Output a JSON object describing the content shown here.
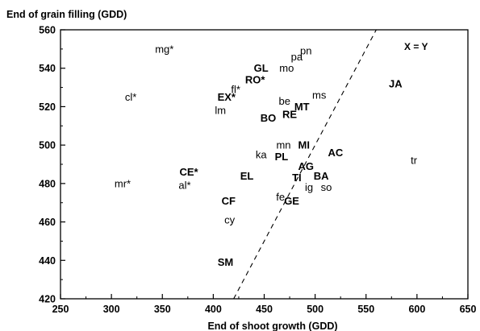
{
  "chart_data": {
    "type": "scatter",
    "ylabel": "End of grain filling (GDD)",
    "xlabel": "End of shoot growth (GDD)",
    "xlim": [
      250,
      650
    ],
    "ylim": [
      420,
      560
    ],
    "x_ticks": [
      250,
      300,
      350,
      400,
      450,
      500,
      550,
      600,
      650
    ],
    "y_ticks": [
      420,
      440,
      460,
      480,
      500,
      520,
      540,
      560
    ],
    "reference_line": {
      "label": "X = Y",
      "style": "dashed"
    },
    "points": [
      {
        "label": "mg*",
        "x": 352,
        "y": 550,
        "bold": false
      },
      {
        "label": "pa",
        "x": 482,
        "y": 546,
        "bold": false
      },
      {
        "label": "pn",
        "x": 491,
        "y": 549,
        "bold": false
      },
      {
        "label": "GL",
        "x": 447,
        "y": 540,
        "bold": true
      },
      {
        "label": "mo",
        "x": 472,
        "y": 540,
        "bold": false
      },
      {
        "label": "RO*",
        "x": 441,
        "y": 534,
        "bold": true
      },
      {
        "label": "fl*",
        "x": 422,
        "y": 529,
        "bold": false
      },
      {
        "label": "cl*",
        "x": 319,
        "y": 525,
        "bold": false
      },
      {
        "label": "EX*",
        "x": 413,
        "y": 525,
        "bold": true
      },
      {
        "label": "ms",
        "x": 504,
        "y": 526,
        "bold": false
      },
      {
        "label": "be",
        "x": 470,
        "y": 523,
        "bold": false
      },
      {
        "label": "MT",
        "x": 487,
        "y": 520,
        "bold": true
      },
      {
        "label": "lm",
        "x": 407,
        "y": 518,
        "bold": false
      },
      {
        "label": "RE",
        "x": 475,
        "y": 516,
        "bold": true
      },
      {
        "label": "BO",
        "x": 454,
        "y": 514,
        "bold": true
      },
      {
        "label": "JA",
        "x": 579,
        "y": 532,
        "bold": true
      },
      {
        "label": "mn",
        "x": 469,
        "y": 500,
        "bold": false
      },
      {
        "label": "MI",
        "x": 489,
        "y": 500,
        "bold": true
      },
      {
        "label": "ka",
        "x": 447,
        "y": 495,
        "bold": false
      },
      {
        "label": "PL",
        "x": 467,
        "y": 494,
        "bold": true
      },
      {
        "label": "AC",
        "x": 520,
        "y": 496,
        "bold": true
      },
      {
        "label": "tr",
        "x": 597,
        "y": 492,
        "bold": false
      },
      {
        "label": "AG",
        "x": 491,
        "y": 489,
        "bold": true
      },
      {
        "label": "CE*",
        "x": 376,
        "y": 486,
        "bold": true
      },
      {
        "label": "EL",
        "x": 433,
        "y": 484,
        "bold": true
      },
      {
        "label": "TI",
        "x": 482,
        "y": 483,
        "bold": true
      },
      {
        "label": "BA",
        "x": 506,
        "y": 484,
        "bold": true
      },
      {
        "label": "mr*",
        "x": 311,
        "y": 480,
        "bold": false
      },
      {
        "label": "al*",
        "x": 372,
        "y": 479,
        "bold": false
      },
      {
        "label": "ig",
        "x": 494,
        "y": 478,
        "bold": false
      },
      {
        "label": "so",
        "x": 511,
        "y": 478,
        "bold": false
      },
      {
        "label": "fe",
        "x": 466,
        "y": 473,
        "bold": false
      },
      {
        "label": "GE",
        "x": 477,
        "y": 471,
        "bold": true
      },
      {
        "label": "CF",
        "x": 415,
        "y": 471,
        "bold": true
      },
      {
        "label": "cy",
        "x": 416,
        "y": 461,
        "bold": false
      },
      {
        "label": "SM",
        "x": 412,
        "y": 439,
        "bold": true
      }
    ]
  }
}
